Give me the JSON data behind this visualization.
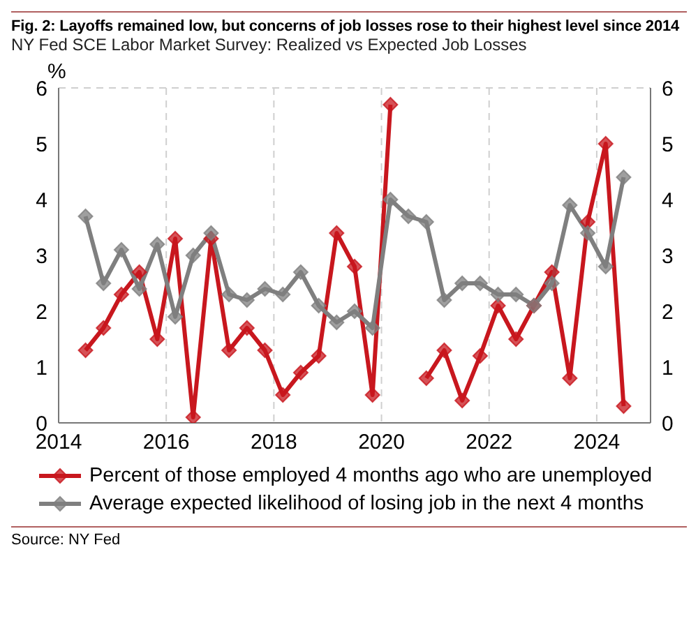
{
  "chart_data": {
    "type": "line",
    "title": "Fig. 2: Layoffs remained low, but concerns of job losses rose to their highest level since 2014",
    "subtitle": "NY Fed SCE Labor Market Survey: Realized vs Expected Job Losses",
    "ylabel": "%",
    "x": [
      "2014-07",
      "2014-11",
      "2015-03",
      "2015-07",
      "2015-11",
      "2016-03",
      "2016-07",
      "2016-11",
      "2017-03",
      "2017-07",
      "2017-11",
      "2018-03",
      "2018-07",
      "2018-11",
      "2019-03",
      "2019-07",
      "2019-11",
      "2020-03",
      "2020-07",
      "2020-11",
      "2021-03",
      "2021-07",
      "2021-11",
      "2022-03",
      "2022-07",
      "2022-11",
      "2023-03",
      "2023-07",
      "2023-11",
      "2024-03",
      "2024-07"
    ],
    "series": [
      {
        "name": "Percent of those employed 4 months ago who are unemployed",
        "color": "#c8171e",
        "values": [
          1.3,
          1.7,
          2.3,
          2.7,
          1.5,
          3.3,
          0.1,
          3.3,
          1.3,
          1.7,
          1.3,
          0.5,
          0.9,
          1.2,
          3.4,
          2.8,
          0.5,
          5.7,
          null,
          0.8,
          1.3,
          0.4,
          1.2,
          2.1,
          1.5,
          2.1,
          2.7,
          0.8,
          3.6,
          5.0,
          0.3
        ]
      },
      {
        "name": "Average expected likelihood of losing job in the next 4 months",
        "color": "#7f7f7f",
        "values": [
          3.7,
          2.5,
          3.1,
          2.4,
          3.2,
          1.9,
          3.0,
          3.4,
          2.3,
          2.2,
          2.4,
          2.3,
          2.7,
          2.1,
          1.8,
          2.0,
          1.7,
          4.0,
          3.7,
          3.6,
          2.2,
          2.5,
          2.5,
          2.3,
          2.3,
          2.1,
          2.5,
          3.9,
          3.4,
          2.8,
          4.4
        ]
      }
    ],
    "xlim": [
      "2014",
      "2025"
    ],
    "xticks": [
      "2014",
      "2016",
      "2018",
      "2020",
      "2022",
      "2024"
    ],
    "ylim": [
      0,
      6
    ],
    "yticks": [
      0,
      1,
      2,
      3,
      4,
      5,
      6
    ],
    "y2lim": [
      0,
      6
    ],
    "y2ticks": [
      0,
      1,
      2,
      3,
      4,
      5,
      6
    ],
    "grid": true,
    "legend": "bottom",
    "marker": "diamond",
    "line_style": "solid",
    "annotations": [
      "Source: NY Fed"
    ]
  }
}
